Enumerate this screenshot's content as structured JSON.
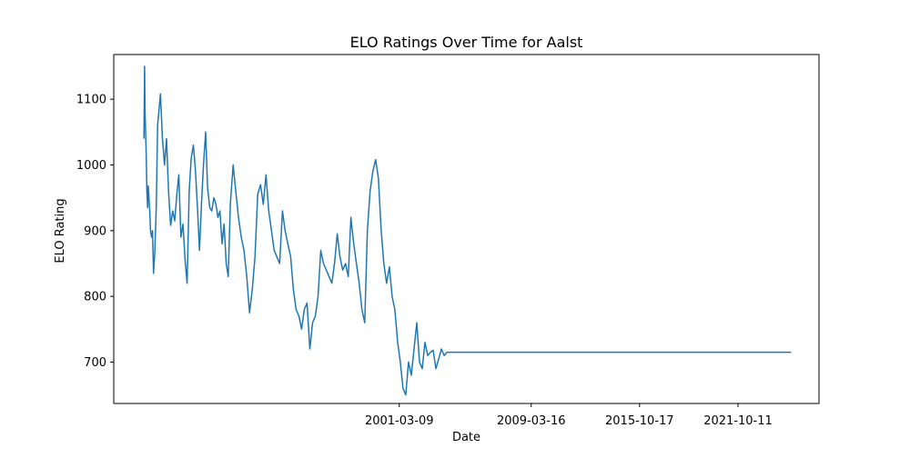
{
  "chart_data": {
    "type": "line",
    "title": "ELO Ratings Over Time for Aalst",
    "xlabel": "Date",
    "ylabel": "ELO Rating",
    "x_ticks": [
      "2001-03-09",
      "2009-03-16",
      "2015-10-17",
      "2021-10-11"
    ],
    "y_ticks": [
      700,
      800,
      900,
      1000,
      1100
    ],
    "xlim": [
      "1983-10-31",
      "2026-09-13"
    ],
    "ylim": [
      637,
      1168
    ],
    "grid": false,
    "series_color": "#1f77b4",
    "series": [
      {
        "x": [
          "1985-09-01",
          "1985-09-15",
          "1985-09-25",
          "1985-10-10",
          "1985-10-20",
          "1985-11-05",
          "1985-11-20",
          "1985-12-05",
          "1986-01-05",
          "1986-01-25",
          "1986-02-15",
          "1986-03-10",
          "1986-04-01",
          "1986-05-01",
          "1986-06-01",
          "1986-07-01",
          "1986-09-01",
          "1986-10-15",
          "1986-12-01",
          "1987-01-15",
          "1987-03-01",
          "1987-04-15",
          "1987-06-01",
          "1987-07-15",
          "1987-09-01",
          "1987-10-15",
          "1987-12-01",
          "1988-01-15",
          "1988-03-01",
          "1988-04-15",
          "1988-06-01",
          "1988-07-15",
          "1988-09-01",
          "1988-10-15",
          "1988-12-01",
          "1989-01-15",
          "1989-03-01",
          "1989-04-15",
          "1989-06-01",
          "1989-07-15",
          "1989-09-01",
          "1989-10-15",
          "1989-12-01",
          "1990-01-15",
          "1990-03-01",
          "1990-04-15",
          "1990-06-01",
          "1990-07-15",
          "1990-09-01",
          "1990-10-15",
          "1990-12-01",
          "1991-02-01",
          "1991-04-01",
          "1991-06-01",
          "1991-08-01",
          "1991-10-01",
          "1991-12-01",
          "1992-02-01",
          "1992-04-01",
          "1992-06-01",
          "1992-08-01",
          "1992-10-01",
          "1992-12-01",
          "1993-02-01",
          "1993-04-01",
          "1993-06-01",
          "1993-08-01",
          "1993-10-01",
          "1993-12-01",
          "1994-02-01",
          "1994-04-01",
          "1994-06-01",
          "1994-08-01",
          "1994-10-01",
          "1994-12-01",
          "1995-02-01",
          "1995-04-01",
          "1995-06-01",
          "1995-08-01",
          "1995-10-01",
          "1995-12-01",
          "1996-02-01",
          "1996-04-01",
          "1996-06-01",
          "1996-08-01",
          "1996-10-01",
          "1996-12-01",
          "1997-02-01",
          "1997-04-01",
          "1997-06-01",
          "1997-08-01",
          "1997-10-01",
          "1997-12-01",
          "1998-02-01",
          "1998-04-01",
          "1998-06-01",
          "1998-08-01",
          "1998-10-01",
          "1998-12-01",
          "1999-02-01",
          "1999-04-01",
          "1999-06-01",
          "1999-08-01",
          "1999-10-01",
          "1999-12-01",
          "2000-02-01",
          "2000-04-01",
          "2000-06-01",
          "2000-08-01",
          "2000-10-01",
          "2000-12-01",
          "2001-02-01",
          "2001-04-01",
          "2001-06-01",
          "2001-08-01",
          "2001-10-01",
          "2001-12-01",
          "2002-02-01",
          "2002-04-01",
          "2002-06-01",
          "2002-08-01",
          "2002-10-01",
          "2002-12-01",
          "2003-02-01",
          "2003-04-01",
          "2003-06-01",
          "2003-08-01",
          "2003-10-01",
          "2003-12-01",
          "2004-02-01",
          "2004-04-01",
          "2004-06-01",
          "2004-09-01",
          "2025-01-01"
        ],
        "y": [
          1040,
          1150,
          1080,
          1045,
          1020,
          960,
          935,
          968,
          935,
          900,
          890,
          900,
          835,
          870,
          935,
          1060,
          1108,
          1040,
          1000,
          1040,
          960,
          908,
          930,
          915,
          955,
          985,
          890,
          910,
          855,
          820,
          960,
          1010,
          1030,
          995,
          935,
          870,
          940,
          1000,
          1050,
          965,
          935,
          930,
          950,
          940,
          920,
          930,
          880,
          910,
          850,
          830,
          940,
          1000,
          960,
          920,
          890,
          870,
          830,
          775,
          810,
          860,
          955,
          970,
          940,
          985,
          930,
          900,
          870,
          860,
          850,
          930,
          900,
          880,
          860,
          810,
          780,
          770,
          750,
          780,
          790,
          720,
          760,
          770,
          800,
          870,
          850,
          840,
          830,
          820,
          850,
          895,
          860,
          840,
          850,
          830,
          920,
          880,
          850,
          820,
          780,
          760,
          900,
          960,
          990,
          1008,
          980,
          900,
          850,
          820,
          845,
          800,
          780,
          730,
          700,
          660,
          650,
          700,
          680,
          720,
          760,
          700,
          690,
          730,
          710,
          715,
          718,
          690,
          705,
          720,
          710,
          715,
          715,
          715,
          715,
          715
        ]
      }
    ]
  }
}
